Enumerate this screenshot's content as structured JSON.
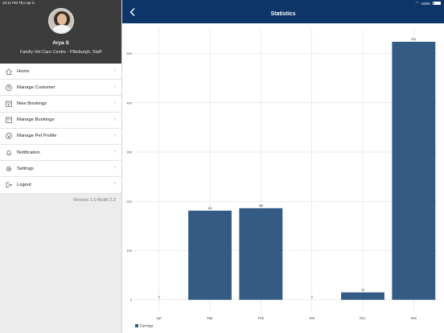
{
  "status_bar": {
    "time_date": "10:11 PM   Thu Apr 5",
    "battery": "100%"
  },
  "profile": {
    "name": "Arya S",
    "subtitle": "Family Vet Care Centre - Pittsburgh, Staff"
  },
  "menu": [
    {
      "label": "Home",
      "icon": "home-icon"
    },
    {
      "label": "Manage Customer",
      "icon": "customer-icon"
    },
    {
      "label": "New Bookings",
      "icon": "new-booking-icon"
    },
    {
      "label": "Manage Bookings",
      "icon": "calendar-icon"
    },
    {
      "label": "Manage Pet Profile",
      "icon": "pet-icon"
    },
    {
      "label": "Notification",
      "icon": "bell-icon"
    },
    {
      "label": "Settings",
      "icon": "gear-icon"
    },
    {
      "label": "Logout",
      "icon": "logout-icon"
    }
  ],
  "version_text": "Version 1.0  Build 2.2",
  "header": {
    "title": "Statistics"
  },
  "colors": {
    "navbar": "#0d3567",
    "bar": "#335b84",
    "sidebar_header": "#3c3c3c"
  },
  "chart_data": {
    "type": "bar",
    "categories": [
      "Apr",
      "Mar",
      "Feb",
      "Jan",
      "Dec",
      "Nov"
    ],
    "series": [
      {
        "name": "Earnings",
        "values": [
          0,
          181,
          186,
          0,
          15,
          524
        ]
      }
    ],
    "value_labels": [
      "0",
      "181",
      "186",
      "0",
      "15",
      "524"
    ],
    "yticks": [
      0,
      100,
      200,
      300,
      400,
      500
    ],
    "ylim": [
      -25,
      550
    ],
    "grid": true,
    "legend": "bottom-left"
  }
}
